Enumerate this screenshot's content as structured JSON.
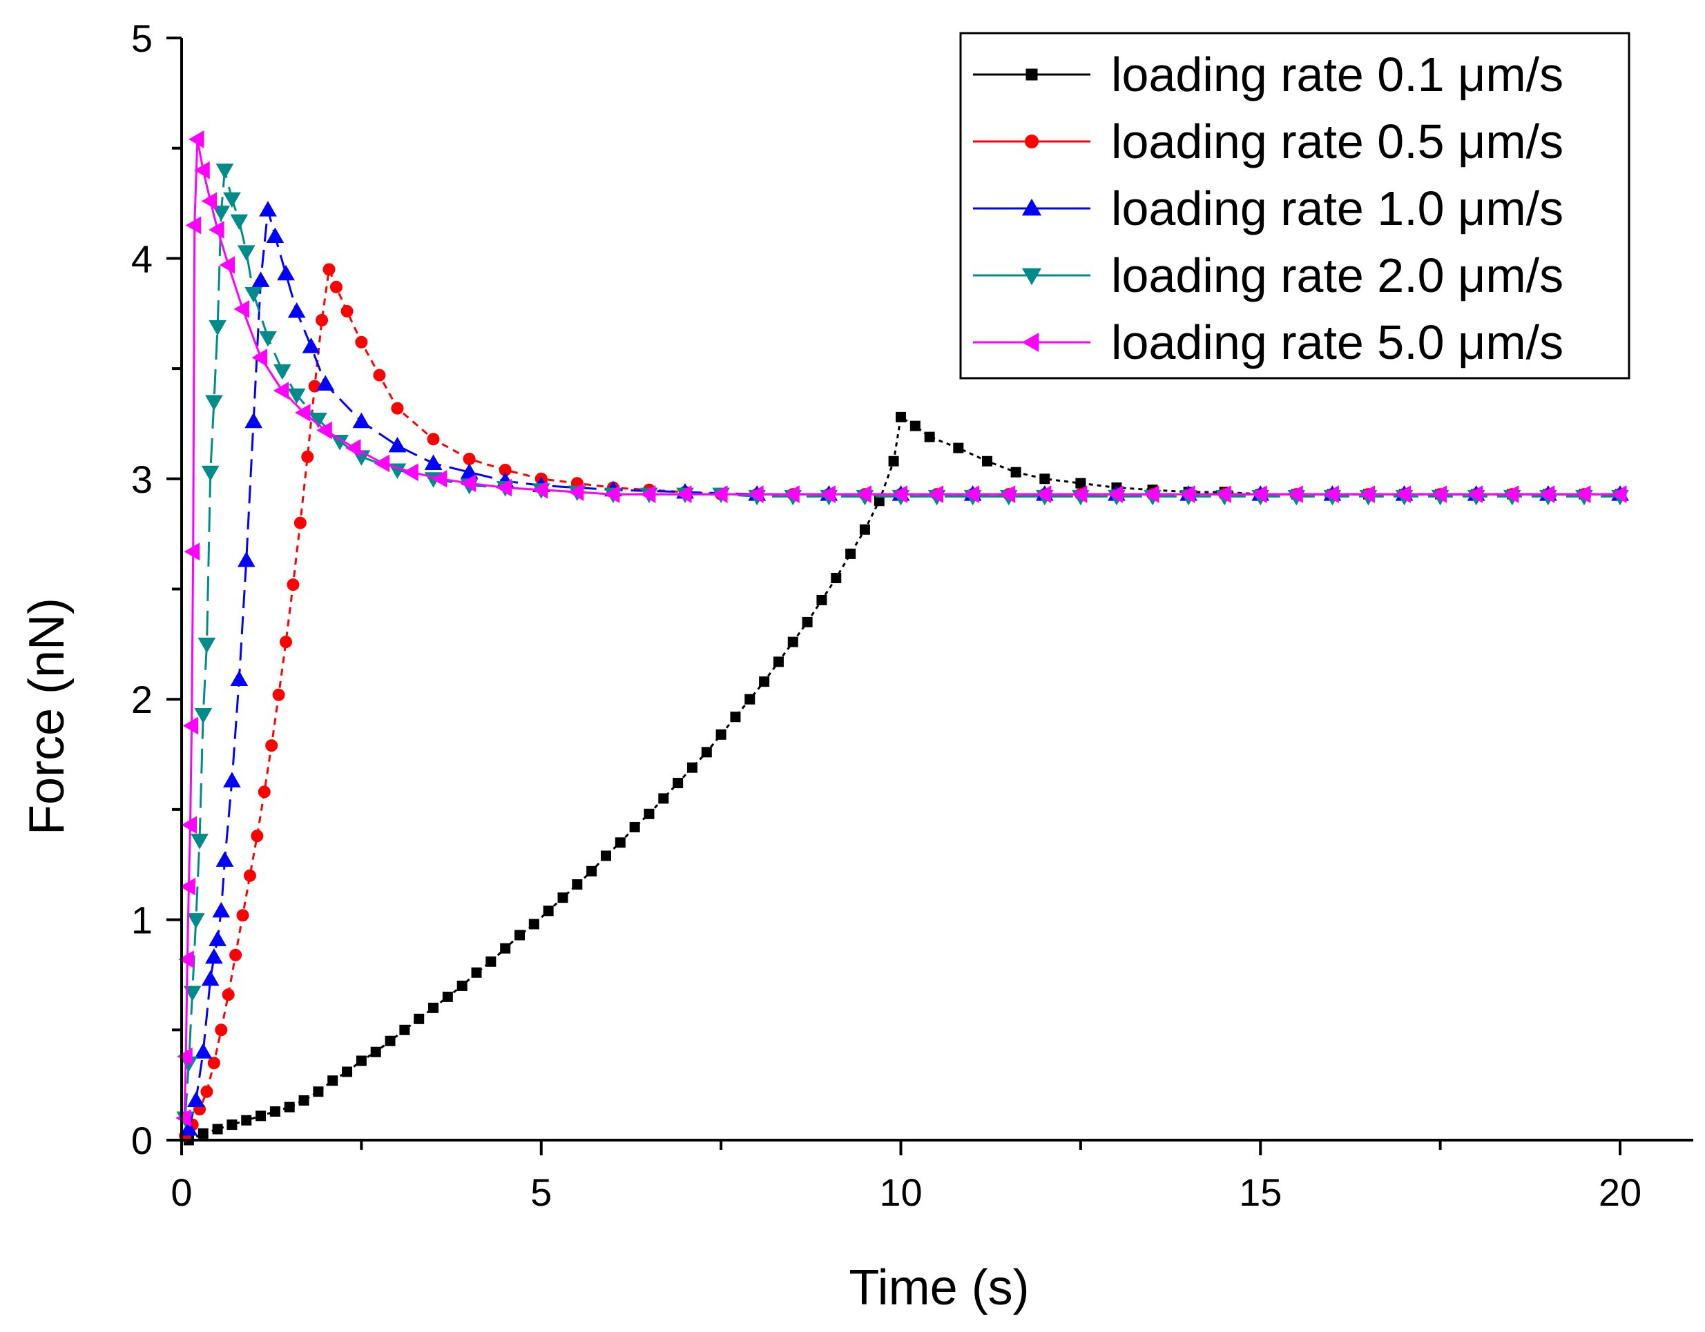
{
  "chart_data": {
    "type": "line",
    "title": "",
    "xlabel": "Time (s)",
    "ylabel": "Force (nN)",
    "xlim": [
      0,
      21
    ],
    "ylim": [
      0,
      5
    ],
    "x_ticks": [
      0,
      5,
      10,
      15,
      20
    ],
    "x_tick_labels": [
      "0",
      "5",
      "10",
      "15",
      "20"
    ],
    "y_ticks": [
      0,
      1,
      2,
      3,
      4,
      5
    ],
    "y_tick_labels": [
      "0",
      "1",
      "2",
      "3",
      "4",
      "5"
    ],
    "grid": false,
    "legend_position": "top-right",
    "series": [
      {
        "name": "loading rate 0.1 μm/s",
        "color": "#000000",
        "marker": "square",
        "points": [
          [
            0.1,
            0.0
          ],
          [
            0.3,
            0.03
          ],
          [
            0.5,
            0.05
          ],
          [
            0.7,
            0.07
          ],
          [
            0.9,
            0.09
          ],
          [
            1.1,
            0.11
          ],
          [
            1.3,
            0.13
          ],
          [
            1.5,
            0.15
          ],
          [
            1.7,
            0.18
          ],
          [
            1.9,
            0.22
          ],
          [
            2.1,
            0.27
          ],
          [
            2.3,
            0.31
          ],
          [
            2.5,
            0.36
          ],
          [
            2.7,
            0.4
          ],
          [
            2.9,
            0.45
          ],
          [
            3.1,
            0.5
          ],
          [
            3.3,
            0.55
          ],
          [
            3.5,
            0.6
          ],
          [
            3.7,
            0.65
          ],
          [
            3.9,
            0.7
          ],
          [
            4.1,
            0.76
          ],
          [
            4.3,
            0.81
          ],
          [
            4.5,
            0.87
          ],
          [
            4.7,
            0.93
          ],
          [
            4.9,
            0.98
          ],
          [
            5.1,
            1.04
          ],
          [
            5.3,
            1.1
          ],
          [
            5.5,
            1.16
          ],
          [
            5.7,
            1.22
          ],
          [
            5.9,
            1.29
          ],
          [
            6.1,
            1.35
          ],
          [
            6.3,
            1.42
          ],
          [
            6.5,
            1.48
          ],
          [
            6.7,
            1.55
          ],
          [
            6.9,
            1.62
          ],
          [
            7.1,
            1.69
          ],
          [
            7.3,
            1.76
          ],
          [
            7.5,
            1.84
          ],
          [
            7.7,
            1.92
          ],
          [
            7.9,
            2.0
          ],
          [
            8.1,
            2.08
          ],
          [
            8.3,
            2.17
          ],
          [
            8.5,
            2.26
          ],
          [
            8.7,
            2.35
          ],
          [
            8.9,
            2.45
          ],
          [
            9.1,
            2.55
          ],
          [
            9.3,
            2.66
          ],
          [
            9.5,
            2.77
          ],
          [
            9.7,
            2.9
          ],
          [
            9.9,
            3.08
          ],
          [
            10.0,
            3.28
          ],
          [
            10.2,
            3.24
          ],
          [
            10.4,
            3.19
          ],
          [
            10.8,
            3.14
          ],
          [
            11.2,
            3.08
          ],
          [
            11.6,
            3.03
          ],
          [
            12.0,
            3.0
          ],
          [
            12.5,
            2.98
          ],
          [
            13.0,
            2.96
          ],
          [
            13.5,
            2.95
          ],
          [
            14.0,
            2.94
          ],
          [
            14.5,
            2.94
          ],
          [
            15.0,
            2.93
          ],
          [
            15.5,
            2.93
          ],
          [
            16.0,
            2.93
          ],
          [
            16.5,
            2.93
          ],
          [
            17.0,
            2.93
          ],
          [
            17.5,
            2.93
          ],
          [
            18.0,
            2.93
          ],
          [
            18.5,
            2.93
          ],
          [
            19.0,
            2.93
          ],
          [
            19.5,
            2.93
          ],
          [
            20.0,
            2.93
          ]
        ]
      },
      {
        "name": "loading rate 0.5 μm/s",
        "color": "#ff0000",
        "marker": "circle",
        "points": [
          [
            0.05,
            0.02
          ],
          [
            0.15,
            0.07
          ],
          [
            0.25,
            0.14
          ],
          [
            0.35,
            0.22
          ],
          [
            0.45,
            0.35
          ],
          [
            0.55,
            0.5
          ],
          [
            0.65,
            0.66
          ],
          [
            0.75,
            0.84
          ],
          [
            0.85,
            1.02
          ],
          [
            0.95,
            1.2
          ],
          [
            1.05,
            1.38
          ],
          [
            1.15,
            1.58
          ],
          [
            1.25,
            1.79
          ],
          [
            1.35,
            2.02
          ],
          [
            1.45,
            2.26
          ],
          [
            1.55,
            2.52
          ],
          [
            1.65,
            2.8
          ],
          [
            1.75,
            3.1
          ],
          [
            1.85,
            3.42
          ],
          [
            1.95,
            3.72
          ],
          [
            2.05,
            3.95
          ],
          [
            2.15,
            3.87
          ],
          [
            2.3,
            3.76
          ],
          [
            2.5,
            3.62
          ],
          [
            2.75,
            3.47
          ],
          [
            3.0,
            3.32
          ],
          [
            3.5,
            3.18
          ],
          [
            4.0,
            3.09
          ],
          [
            4.5,
            3.04
          ],
          [
            5.0,
            3.0
          ],
          [
            5.5,
            2.98
          ],
          [
            6.0,
            2.96
          ],
          [
            6.5,
            2.95
          ],
          [
            7.0,
            2.94
          ],
          [
            7.5,
            2.93
          ],
          [
            8.0,
            2.93
          ],
          [
            8.5,
            2.93
          ],
          [
            9.0,
            2.93
          ],
          [
            9.5,
            2.93
          ],
          [
            10.0,
            2.93
          ],
          [
            10.5,
            2.93
          ],
          [
            11.0,
            2.93
          ],
          [
            11.5,
            2.93
          ],
          [
            12.0,
            2.93
          ],
          [
            12.5,
            2.93
          ],
          [
            13.0,
            2.93
          ],
          [
            13.5,
            2.93
          ],
          [
            14.0,
            2.93
          ],
          [
            14.5,
            2.93
          ],
          [
            15.0,
            2.93
          ],
          [
            15.5,
            2.93
          ],
          [
            16.0,
            2.93
          ],
          [
            16.5,
            2.93
          ],
          [
            17.0,
            2.93
          ],
          [
            17.5,
            2.93
          ],
          [
            18.0,
            2.93
          ],
          [
            18.5,
            2.93
          ],
          [
            19.0,
            2.93
          ],
          [
            19.5,
            2.93
          ],
          [
            20.0,
            2.93
          ]
        ]
      },
      {
        "name": "loading rate 1.0 μm/s",
        "color": "#0000ff",
        "marker": "triangle-up",
        "points": [
          [
            0.1,
            0.05
          ],
          [
            0.2,
            0.18
          ],
          [
            0.3,
            0.4
          ],
          [
            0.4,
            0.73
          ],
          [
            0.45,
            0.83
          ],
          [
            0.5,
            0.91
          ],
          [
            0.55,
            1.04
          ],
          [
            0.6,
            1.27
          ],
          [
            0.7,
            1.63
          ],
          [
            0.8,
            2.09
          ],
          [
            0.9,
            2.63
          ],
          [
            1.0,
            3.26
          ],
          [
            1.1,
            3.9
          ],
          [
            1.2,
            4.22
          ],
          [
            1.3,
            4.1
          ],
          [
            1.45,
            3.93
          ],
          [
            1.6,
            3.76
          ],
          [
            1.8,
            3.6
          ],
          [
            2.0,
            3.43
          ],
          [
            2.5,
            3.26
          ],
          [
            3.0,
            3.15
          ],
          [
            3.5,
            3.07
          ],
          [
            4.0,
            3.03
          ],
          [
            4.5,
            2.99
          ],
          [
            5.0,
            2.97
          ],
          [
            6.0,
            2.95
          ],
          [
            7.0,
            2.94
          ],
          [
            8.0,
            2.93
          ],
          [
            9.0,
            2.93
          ],
          [
            10.0,
            2.93
          ],
          [
            11.0,
            2.93
          ],
          [
            12.0,
            2.93
          ],
          [
            13.0,
            2.93
          ],
          [
            14.0,
            2.93
          ],
          [
            15.0,
            2.93
          ],
          [
            16.0,
            2.93
          ],
          [
            17.0,
            2.93
          ],
          [
            18.0,
            2.93
          ],
          [
            19.0,
            2.93
          ],
          [
            20.0,
            2.93
          ]
        ]
      },
      {
        "name": "loading rate 2.0 μm/s",
        "color": "#008b8b",
        "marker": "triangle-down",
        "points": [
          [
            0.05,
            0.1
          ],
          [
            0.1,
            0.35
          ],
          [
            0.15,
            0.67
          ],
          [
            0.2,
            1.0
          ],
          [
            0.25,
            1.36
          ],
          [
            0.3,
            1.93
          ],
          [
            0.35,
            2.25
          ],
          [
            0.4,
            3.03
          ],
          [
            0.45,
            3.35
          ],
          [
            0.5,
            3.69
          ],
          [
            0.55,
            4.21
          ],
          [
            0.6,
            4.4
          ],
          [
            0.7,
            4.27
          ],
          [
            0.8,
            4.17
          ],
          [
            0.9,
            4.03
          ],
          [
            1.0,
            3.84
          ],
          [
            1.2,
            3.64
          ],
          [
            1.4,
            3.49
          ],
          [
            1.6,
            3.38
          ],
          [
            1.9,
            3.27
          ],
          [
            2.2,
            3.17
          ],
          [
            2.5,
            3.1
          ],
          [
            3.0,
            3.04
          ],
          [
            3.5,
            3.0
          ],
          [
            4.0,
            2.97
          ],
          [
            4.5,
            2.96
          ],
          [
            5.0,
            2.95
          ],
          [
            5.5,
            2.94
          ],
          [
            6.0,
            2.93
          ],
          [
            6.5,
            2.93
          ],
          [
            7.0,
            2.93
          ],
          [
            7.5,
            2.93
          ],
          [
            8.0,
            2.92
          ],
          [
            8.5,
            2.92
          ],
          [
            9.0,
            2.92
          ],
          [
            9.5,
            2.92
          ],
          [
            10.0,
            2.92
          ],
          [
            10.5,
            2.92
          ],
          [
            11.0,
            2.92
          ],
          [
            11.5,
            2.92
          ],
          [
            12.0,
            2.92
          ],
          [
            12.5,
            2.92
          ],
          [
            13.0,
            2.92
          ],
          [
            13.5,
            2.92
          ],
          [
            14.0,
            2.92
          ],
          [
            14.5,
            2.92
          ],
          [
            15.0,
            2.92
          ],
          [
            15.5,
            2.92
          ],
          [
            16.0,
            2.92
          ],
          [
            16.5,
            2.92
          ],
          [
            17.0,
            2.92
          ],
          [
            17.5,
            2.92
          ],
          [
            18.0,
            2.92
          ],
          [
            18.5,
            2.92
          ],
          [
            19.0,
            2.92
          ],
          [
            19.5,
            2.92
          ],
          [
            20.0,
            2.92
          ]
        ]
      },
      {
        "name": "loading rate 5.0 μm/s",
        "color": "#ff00ff",
        "marker": "triangle-left",
        "points": [
          [
            0.04,
            0.1
          ],
          [
            0.06,
            0.38
          ],
          [
            0.08,
            0.82
          ],
          [
            0.1,
            1.15
          ],
          [
            0.12,
            1.43
          ],
          [
            0.14,
            1.88
          ],
          [
            0.16,
            2.67
          ],
          [
            0.18,
            4.15
          ],
          [
            0.22,
            4.54
          ],
          [
            0.3,
            4.4
          ],
          [
            0.4,
            4.26
          ],
          [
            0.5,
            4.13
          ],
          [
            0.65,
            3.97
          ],
          [
            0.85,
            3.77
          ],
          [
            1.1,
            3.55
          ],
          [
            1.4,
            3.4
          ],
          [
            1.7,
            3.3
          ],
          [
            2.0,
            3.22
          ],
          [
            2.4,
            3.14
          ],
          [
            2.8,
            3.07
          ],
          [
            3.2,
            3.03
          ],
          [
            3.6,
            3.0
          ],
          [
            4.0,
            2.98
          ],
          [
            4.5,
            2.96
          ],
          [
            5.0,
            2.95
          ],
          [
            5.5,
            2.94
          ],
          [
            6.0,
            2.93
          ],
          [
            6.5,
            2.93
          ],
          [
            7.0,
            2.93
          ],
          [
            7.5,
            2.93
          ],
          [
            8.0,
            2.93
          ],
          [
            8.5,
            2.93
          ],
          [
            9.0,
            2.93
          ],
          [
            9.5,
            2.93
          ],
          [
            10.0,
            2.93
          ],
          [
            10.5,
            2.93
          ],
          [
            11.0,
            2.93
          ],
          [
            11.5,
            2.93
          ],
          [
            12.0,
            2.93
          ],
          [
            12.5,
            2.93
          ],
          [
            13.0,
            2.93
          ],
          [
            13.5,
            2.93
          ],
          [
            14.0,
            2.93
          ],
          [
            14.5,
            2.93
          ],
          [
            15.0,
            2.93
          ],
          [
            15.5,
            2.93
          ],
          [
            16.0,
            2.93
          ],
          [
            16.5,
            2.93
          ],
          [
            17.0,
            2.93
          ],
          [
            17.5,
            2.93
          ],
          [
            18.0,
            2.93
          ],
          [
            18.5,
            2.93
          ],
          [
            19.0,
            2.93
          ],
          [
            19.5,
            2.93
          ],
          [
            20.0,
            2.93
          ]
        ]
      }
    ]
  }
}
